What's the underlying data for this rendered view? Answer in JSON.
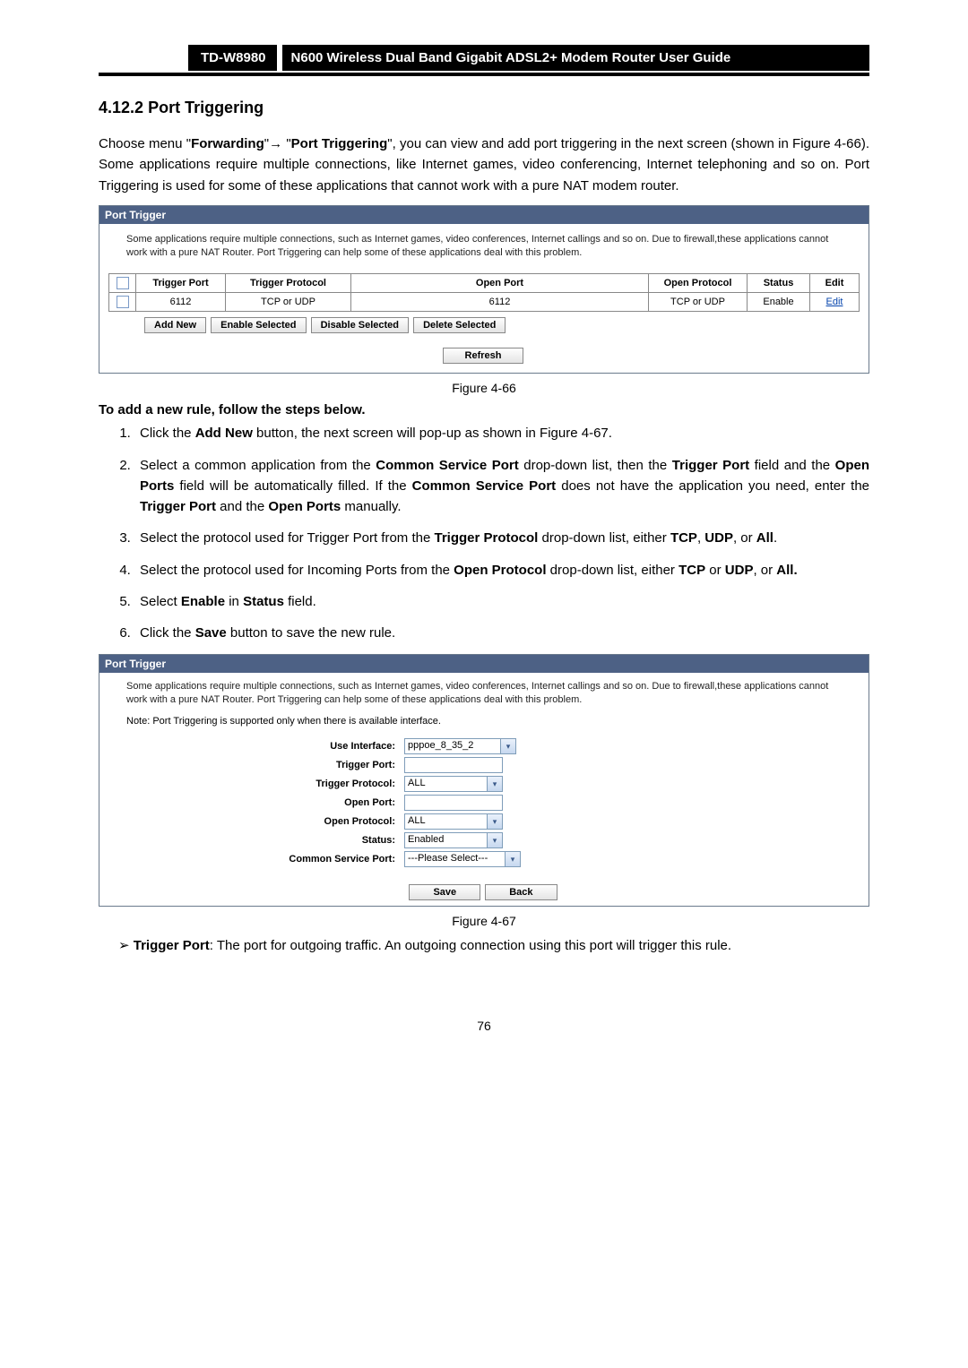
{
  "header": {
    "model": "TD-W8980",
    "title": "N600 Wireless Dual Band Gigabit ADSL2+ Modem Router User Guide"
  },
  "section": {
    "number": "4.12.2",
    "title": "Port Triggering"
  },
  "intro": {
    "pre": "Choose menu \"",
    "menu1": "Forwarding",
    "arrow": "→",
    "menu2": "Port Triggering",
    "post": "\", you can view and add port triggering in the next screen (shown in Figure 4-66). Some applications require multiple connections, like Internet games, video conferencing, Internet telephoning and so on. Port Triggering is used for some of these applications that cannot work with a pure NAT modem router."
  },
  "panel1": {
    "title": "Port Trigger",
    "desc": "Some applications require multiple connections, such as Internet games, video conferences, Internet callings and so on. Due to firewall,these applications cannot work with a pure NAT Router. Port Triggering can help some of these applications deal with this problem.",
    "headers": [
      "",
      "Trigger Port",
      "Trigger Protocol",
      "Open Port",
      "Open Protocol",
      "Status",
      "Edit"
    ],
    "row": {
      "trigger_port": "6112",
      "trigger_protocol": "TCP or UDP",
      "open_port": "6112",
      "open_protocol": "TCP or UDP",
      "status": "Enable",
      "edit": "Edit"
    },
    "buttons": [
      "Add New",
      "Enable Selected",
      "Disable Selected",
      "Delete Selected"
    ],
    "refresh": "Refresh"
  },
  "fig66": "Figure 4-66",
  "steps_head": "To add a new rule, follow the steps below.",
  "steps": [
    {
      "pre": "Click the ",
      "b1": "Add New",
      "post": " button, the next screen will pop-up as shown in Figure 4-67."
    },
    {
      "raw": "Select a common application from the <b>Common Service Port</b> drop-down list, then the <b>Trigger Port</b> field and the <b>Open Ports</b> field will be automatically filled. If the <b>Common Service Port</b> does not have the application you need, enter the <b>Trigger Port</b> and the <b>Open Ports</b> manually."
    },
    {
      "raw": "Select the protocol used for Trigger Port from the <b>Trigger Protocol</b> drop-down list, either <b>TCP</b>, <b>UDP</b>, or <b>All</b>."
    },
    {
      "raw": "Select the protocol used for Incoming Ports from the <b>Open Protocol</b> drop-down list, either <b>TCP</b> or <b>UDP</b>, or <b>All.</b>"
    },
    {
      "raw": "Select <b>Enable</b> in <b>Status</b> field."
    },
    {
      "raw": "Click the <b>Save</b> button to save the new rule."
    }
  ],
  "panel2": {
    "title": "Port Trigger",
    "desc": "Some applications require multiple connections, such as Internet games, video conferences, Internet callings and so on. Due to firewall,these applications cannot work with a pure NAT Router. Port Triggering can help some of these applications deal with this problem.",
    "note": "Note: Port Triggering is supported only when there is available interface.",
    "fields": {
      "use_interface": {
        "label": "Use Interface:",
        "value": "pppoe_8_35_2"
      },
      "trigger_port": {
        "label": "Trigger Port:",
        "value": ""
      },
      "trigger_protocol": {
        "label": "Trigger Protocol:",
        "value": "ALL"
      },
      "open_port": {
        "label": "Open Port:",
        "value": ""
      },
      "open_protocol": {
        "label": "Open Protocol:",
        "value": "ALL"
      },
      "status": {
        "label": "Status:",
        "value": "Enabled"
      },
      "common_service": {
        "label": "Common Service Port:",
        "value": "---Please Select---"
      }
    },
    "save": "Save",
    "back": "Back"
  },
  "fig67": "Figure 4-67",
  "bullet": {
    "label": "Trigger Port",
    "text": ": The port for outgoing traffic. An outgoing connection using this port will trigger this rule."
  },
  "page_number": "76"
}
